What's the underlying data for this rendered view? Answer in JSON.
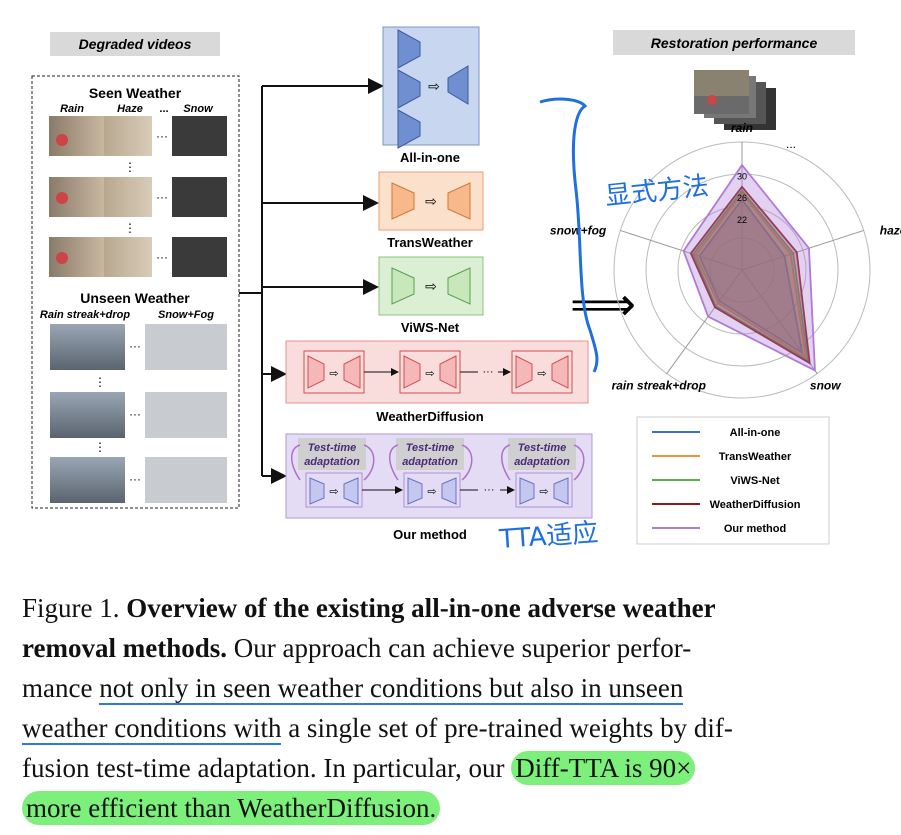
{
  "left_panel": {
    "title": "Degraded videos",
    "seen_title": "Seen Weather",
    "seen_labels": [
      "Rain",
      "Haze",
      "...",
      "Snow"
    ],
    "unseen_title": "Unseen Weather",
    "unseen_labels": [
      "Rain streak+drop",
      "Snow+Fog"
    ],
    "ellipsis": "⋮",
    "dots": "···"
  },
  "methods": {
    "all_in_one": "All-in-one",
    "transweather": "TransWeather",
    "viws_net": "ViWS-Net",
    "weatherdiffusion": "WeatherDiffusion",
    "our_method": "Our method",
    "tta_label": "Test-time adaptation",
    "tta_line1": "Test-time",
    "tta_line2": "adaptation",
    "arrow_glyph": "⇨",
    "chain_dots": "···",
    "implies": "⟹"
  },
  "right_panel": {
    "title": "Restoration performance",
    "dots": "..."
  },
  "chart_data": {
    "type": "radar",
    "axes": [
      "rain",
      "haze",
      "snow",
      "rain streak+drop",
      "snow+fog"
    ],
    "ticks": [
      "22",
      "26",
      "30"
    ],
    "legend": [
      "All-in-one",
      "TransWeather",
      "ViWS-Net",
      "WeatherDiffusion",
      "Our method"
    ],
    "series": [
      {
        "name": "All-in-one",
        "values": [
          0.55,
          0.35,
          0.8,
          0.3,
          0.35
        ],
        "color": "#3a6fd8"
      },
      {
        "name": "TransWeather",
        "values": [
          0.6,
          0.4,
          0.85,
          0.32,
          0.38
        ],
        "color": "#e8963a"
      },
      {
        "name": "ViWS-Net",
        "values": [
          0.62,
          0.42,
          0.88,
          0.35,
          0.4
        ],
        "color": "#5ab04a"
      },
      {
        "name": "WeatherDiffusion",
        "values": [
          0.65,
          0.45,
          0.9,
          0.36,
          0.42
        ],
        "color": "#8b1a1a"
      },
      {
        "name": "Our method",
        "values": [
          0.82,
          0.55,
          0.97,
          0.45,
          0.48
        ],
        "color": "#b07ad8"
      }
    ]
  },
  "annotations": {
    "handwritten_top": "显式方法",
    "handwritten_bottom": "TTA适应"
  },
  "caption": {
    "figure_label": "Figure 1.",
    "bold_title_1": "Overview of the existing all-in-one adverse weather",
    "bold_title_2": "removal methods.",
    "line2_rest": "Our approach can achieve superior perfor-",
    "line3_a": "mance",
    "line3_b": "not only in seen weather conditions but also in unseen",
    "line4_a": "weather conditions with",
    "line4_b": "a single set of pre-trained weights by dif-",
    "line5_a": "fusion test-time adaptation.  In particular, our",
    "line5_b": "Diff-TTA is 90×",
    "line6": "more efficient than WeatherDiffusion."
  },
  "colors": {
    "blue_box": "#c9d6f0",
    "orange_box": "#fbe0cc",
    "green_box": "#dbefd5",
    "red_box": "#f9dcdc",
    "purple_box": "#e4dcf5",
    "highlight": "#7cf07a",
    "ink": "#1f6fe0"
  }
}
